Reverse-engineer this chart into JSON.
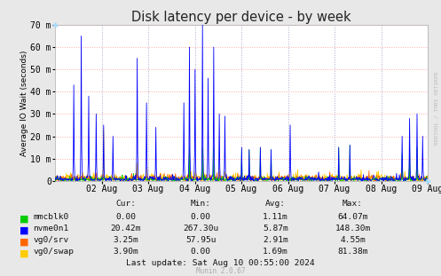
{
  "title": "Disk latency per device - by week",
  "ylabel": "Average IO Wait (seconds)",
  "background_color": "#e8e8e8",
  "plot_bg_color": "#ffffff",
  "grid_color_h": "#ffaaaa",
  "grid_color_v": "#aaaacc",
  "ylim": [
    0,
    0.07
  ],
  "yticks": [
    0,
    0.01,
    0.02,
    0.03,
    0.04,
    0.05,
    0.06,
    0.07
  ],
  "ytick_labels": [
    "0",
    "10 m",
    "20 m",
    "30 m",
    "40 m",
    "50 m",
    "60 m",
    "70 m"
  ],
  "x_tick_labels": [
    "02 Aug",
    "03 Aug",
    "04 Aug",
    "05 Aug",
    "06 Aug",
    "07 Aug",
    "08 Aug",
    "09 Aug"
  ],
  "series_colors": {
    "mmcblk0": "#00cc00",
    "nvme0n1": "#0000ff",
    "vg0/srv": "#ff6600",
    "vg0/swap": "#ffcc00"
  },
  "stats": {
    "mmcblk0": {
      "cur": "0.00",
      "min": "0.00",
      "avg": "1.11m",
      "max": "64.07m"
    },
    "nvme0n1": {
      "cur": "20.42m",
      "min": "267.30u",
      "avg": "5.87m",
      "max": "148.30m"
    },
    "vg0/srv": {
      "cur": "3.25m",
      "min": "57.95u",
      "avg": "2.91m",
      "max": "4.55m"
    },
    "vg0/swap": {
      "cur": "3.90m",
      "min": "0.00",
      "avg": "1.69m",
      "max": "81.38m"
    }
  },
  "footer": "Last update: Sat Aug 10 00:55:00 2024",
  "munin_version": "Munin 2.0.67",
  "rrdtool_label": "RRDTOOL / TOBI OETIKER"
}
